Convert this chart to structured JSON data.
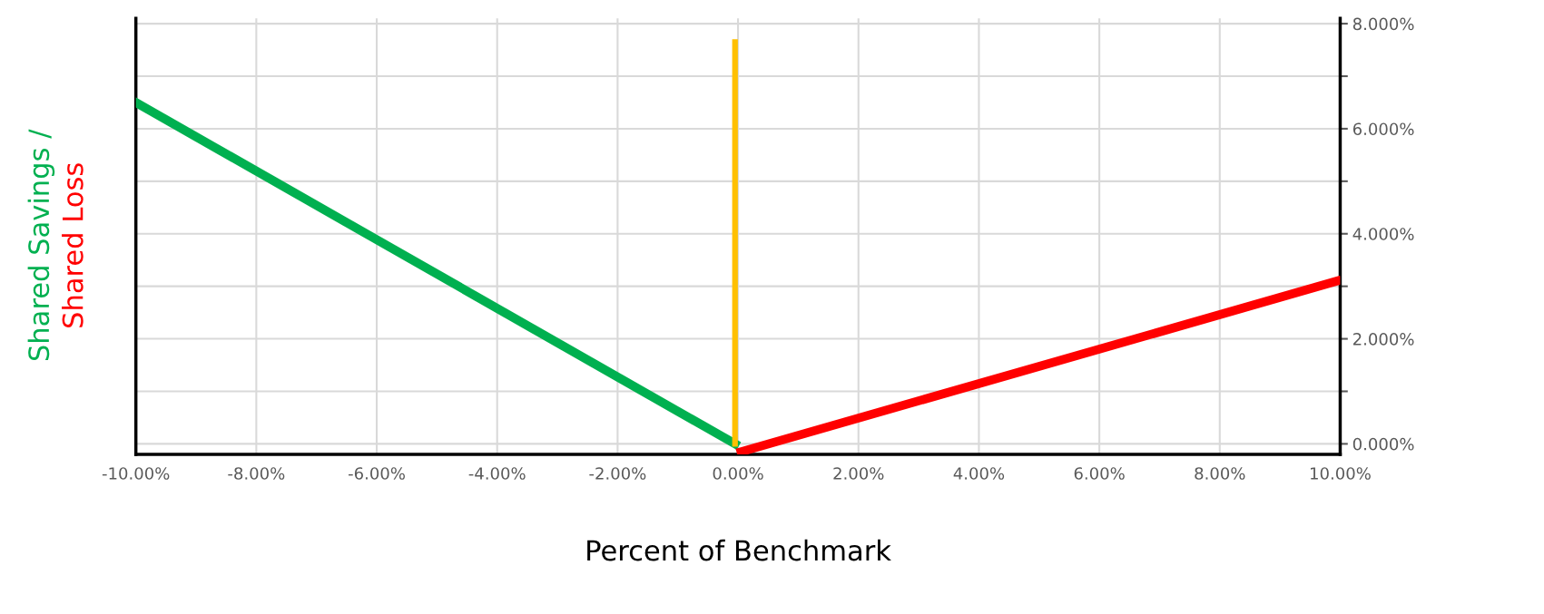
{
  "chart_data": {
    "type": "line",
    "xlabel": "Percent of Benchmark",
    "xlim": [
      -10,
      10
    ],
    "xticks": [
      {
        "value": -10,
        "label": "-10.00%"
      },
      {
        "value": -8,
        "label": "-8.00%"
      },
      {
        "value": -6,
        "label": "-6.00%"
      },
      {
        "value": -4,
        "label": "-4.00%"
      },
      {
        "value": -2,
        "label": "-2.00%"
      },
      {
        "value": 0,
        "label": "0.00%"
      },
      {
        "value": 2,
        "label": "2.00%"
      },
      {
        "value": 4,
        "label": "4.00%"
      },
      {
        "value": 6,
        "label": "6.00%"
      },
      {
        "value": 8,
        "label": "8.00%"
      },
      {
        "value": 10,
        "label": "10.00%"
      }
    ],
    "ylim": [
      -0.2,
      8.1
    ],
    "yticks": [
      {
        "value": 0,
        "label": "0.000%"
      },
      {
        "value": 1,
        "label": null
      },
      {
        "value": 2,
        "label": "2.000%"
      },
      {
        "value": 3,
        "label": null
      },
      {
        "value": 4,
        "label": "4.000%"
      },
      {
        "value": 5,
        "label": null
      },
      {
        "value": 6,
        "label": "6.000%"
      },
      {
        "value": 7,
        "label": null
      },
      {
        "value": 8,
        "label": "8.000%"
      }
    ],
    "grid": true,
    "series": [
      {
        "name": "Shared Savings /",
        "color": "#00b050",
        "x": [
          -10,
          -0.05
        ],
        "values": [
          6.5,
          0
        ]
      },
      {
        "name": "Shared Loss",
        "color": "#ff0000",
        "x": [
          0.05,
          9.95
        ],
        "values": [
          -0.15,
          3.1
        ]
      },
      {
        "color": "#ffc000",
        "x": [
          -0.05,
          -0.05
        ],
        "values": [
          0,
          7.65
        ]
      }
    ]
  }
}
